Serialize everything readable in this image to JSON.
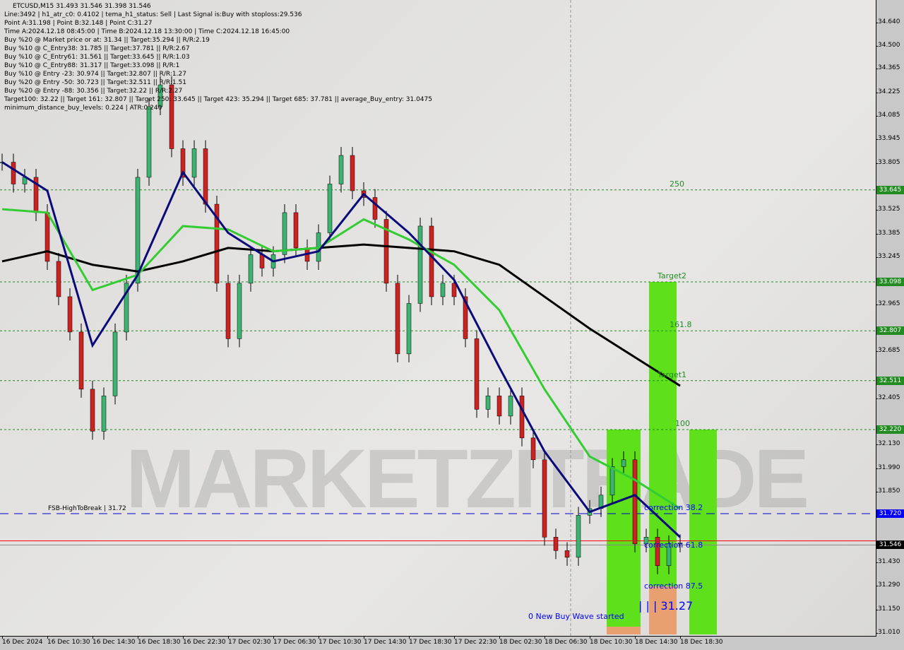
{
  "header": {
    "title": "ETCUSD,M15  31.493 31.546 31.398 31.546",
    "info_lines": [
      "Line:3492 | h1_atr_c0: 0.4102 | tema_h1_status: Sell | Last Signal is:Buy with stoploss:29.536",
      "Point A:31.198 | Point B:32.148 | Point C:31.27",
      "Time A:2024.12.18 08:45:00 | Time B:2024.12.18 13:30:00 | Time C:2024.12.18 16:45:00",
      "Buy %20 @ Market price or at: 31.34 || Target:35.294 || R/R:2.19",
      "Buy %10 @ C_Entry38: 31.785 || Target:37.781 || R/R:2.67",
      "Buy %10 @ C_Entry61: 31.561 || Target:33.645 || R/R:1.03",
      "Buy %10 @ C_Entry88: 31.317 || Target:33.098 || R/R:1",
      "Buy %10 @ Entry -23: 30.974 || Target:32.807 || R/R:1.27",
      "Buy %20 @ Entry -50: 30.723 || Target:32.511 || R/R:1.51",
      "Buy %20 @ Entry -88: 30.356 || Target:32.22 || R/R:2.27",
      "Target100: 32.22 || Target 161: 32.807 || Target 250: 33.645 || Target 423: 35.294 || Target 685: 37.781 || average_Buy_entry: 31.0475",
      "minimum_distance_buy_levels: 0.224 | ATR:0.240"
    ]
  },
  "watermark": "MARKETZITRADE",
  "chart_data": {
    "type": "candlestick",
    "symbol": "ETCUSD",
    "timeframe": "M15",
    "ylim": [
      31.01,
      34.71
    ],
    "y_ticks": [
      "34.640",
      "34.500",
      "34.365",
      "34.225",
      "34.085",
      "33.945",
      "33.805",
      "33.525",
      "33.385",
      "33.245",
      "32.965",
      "32.685",
      "32.405",
      "32.130",
      "31.990",
      "31.850",
      "31.430",
      "31.290",
      "31.150",
      "31.010"
    ],
    "x_ticks": [
      "16 Dec 2024",
      "16 Dec 10:30",
      "16 Dec 14:30",
      "16 Dec 18:30",
      "16 Dec 22:30",
      "17 Dec 02:30",
      "17 Dec 06:30",
      "17 Dec 10:30",
      "17 Dec 14:30",
      "17 Dec 18:30",
      "17 Dec 22:30",
      "18 Dec 02:30",
      "18 Dec 06:30",
      "18 Dec 10:30",
      "18 Dec 14:30",
      "18 Dec 18:30"
    ],
    "close_hourly_from_16_Dec_06_30": [
      33.81,
      33.68,
      33.72,
      33.51,
      33.22,
      33.01,
      32.8,
      32.46,
      32.21,
      32.42,
      32.8,
      33.09,
      33.72,
      34.14,
      34.27,
      33.89,
      33.72,
      33.89,
      33.56,
      33.09,
      32.76,
      33.09,
      33.26,
      33.18,
      33.26,
      33.51,
      33.3,
      33.22,
      33.39,
      33.68,
      33.85,
      33.64,
      33.6,
      33.47,
      33.09,
      32.67,
      32.97,
      33.43,
      33.01,
      33.09,
      33.01,
      32.76,
      32.34,
      32.42,
      32.3,
      32.42,
      32.17,
      32.04,
      31.58,
      31.5,
      31.46,
      31.71,
      31.75,
      31.83,
      32.0,
      32.04,
      31.54,
      31.58,
      31.41,
      31.54,
      31.546
    ],
    "moving_averages": [
      {
        "color": "#000000",
        "values_at_x_ticks": [
          33.22,
          33.28,
          33.2,
          33.16,
          33.22,
          33.3,
          33.28,
          33.3,
          33.32,
          33.3,
          33.28,
          33.2,
          33.01,
          32.82,
          32.65,
          32.48
        ]
      },
      {
        "color": "#33cc33",
        "values_at_x_ticks": [
          33.53,
          33.51,
          33.05,
          33.14,
          33.43,
          33.41,
          33.28,
          33.3,
          33.47,
          33.35,
          33.2,
          32.93,
          32.46,
          32.06,
          31.92,
          31.75
        ]
      },
      {
        "color": "#0a0a7a",
        "values_at_x_ticks": [
          33.81,
          33.64,
          32.72,
          33.14,
          33.75,
          33.39,
          33.22,
          33.28,
          33.62,
          33.39,
          33.11,
          32.59,
          32.09,
          31.73,
          31.83,
          31.58
        ]
      }
    ],
    "levels": [
      {
        "price": 33.645,
        "badge": "33.645",
        "label": "250",
        "color": "#228b22"
      },
      {
        "price": 33.098,
        "badge": "33.098",
        "label": "Target2",
        "color": "#228b22"
      },
      {
        "price": 32.807,
        "badge": "32.807",
        "label": "161.8",
        "color": "#228b22"
      },
      {
        "price": 32.511,
        "badge": "32.511",
        "label": "Target1",
        "color": "#228b22"
      },
      {
        "price": 32.22,
        "badge": "32.220",
        "label": "100",
        "color": "#228b22"
      }
    ],
    "fsb_line": {
      "price": 31.72,
      "badge": "31.720",
      "label": "FSB-HighToBreak | 31.72",
      "color": "#0000ff"
    },
    "current_price": {
      "price": 31.546,
      "badge": "31.546"
    },
    "ask_line": {
      "price": 31.558,
      "color": "#ff0000"
    },
    "annotations": [
      "correction 38.2",
      "correction 61.8",
      "correction 87.5",
      "| | | 31.27",
      "0 New Buy Wave started"
    ],
    "colors": {
      "bull": "#3cb371",
      "bear": "#cc2222",
      "zone_green": "#5ee01a",
      "zone_orange": "#e8a070"
    }
  }
}
